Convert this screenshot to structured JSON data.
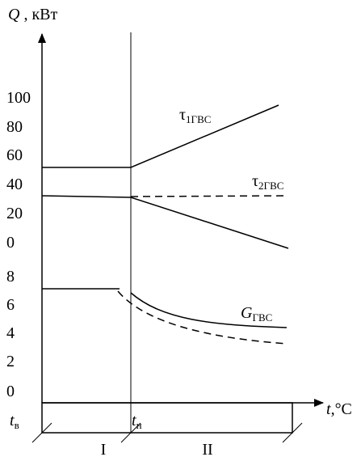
{
  "axis": {
    "y_symbol": "Q",
    "y_unit": " , кВт",
    "x_symbol": "t",
    "x_unit": ",°C"
  },
  "y_scale_labels": [
    "100",
    "80",
    "60",
    "40",
    "20",
    "0",
    "8",
    "6",
    "4",
    "2",
    "0"
  ],
  "points": [
    {
      "symbol": "t",
      "sub": "в"
    },
    {
      "symbol": "t",
      "sub": "н"
    }
  ],
  "curves": [
    {
      "symbol": "τ",
      "sub": "1ГВС"
    },
    {
      "symbol": "τ",
      "sub": "2ГВС"
    },
    {
      "symbol": "G",
      "sub": "ГВС"
    }
  ],
  "zones": [
    "I",
    "II"
  ]
}
